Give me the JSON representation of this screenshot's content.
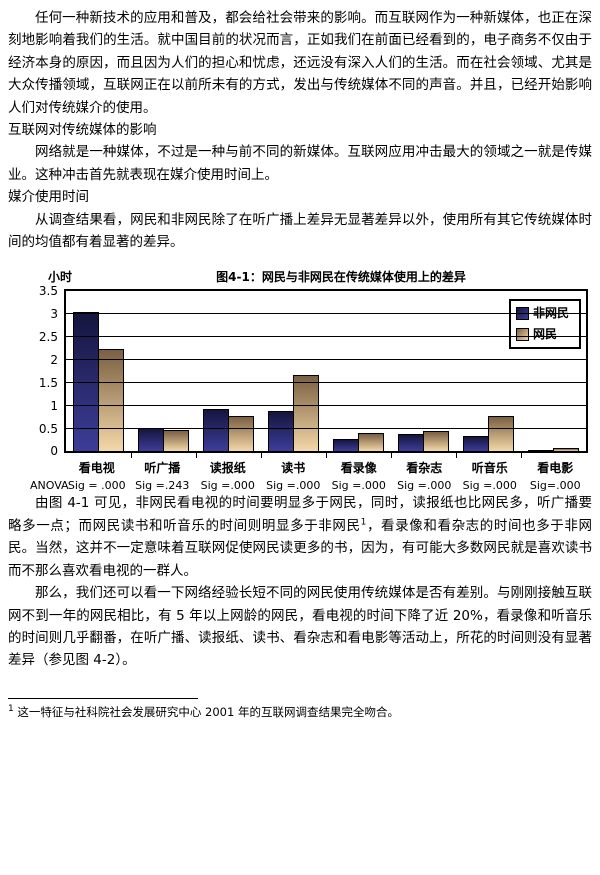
{
  "document": {
    "p1": "任何一种新技术的应用和普及，都会给社会带来的影响。而互联网作为一种新媒体，也正在深刻地影响着我们的生活。就中国目前的状况而言，正如我们在前面已经看到的，电子商务不仅由于经济本身的原因，而且因为人们的担心和忧虑，还远没有深入人们的生活。而在社会领域、尤其是大众传播领域，互联网正在以前所未有的方式，发出与传统媒体不同的声音。并且，已经开始影响人们对传统媒介的使用。",
    "heading": "互联网对传统媒体的影响",
    "p2": "网络就是一种媒体，不过是一种与前不同的新媒体。互联网应用冲击最大的领域之一就是传媒业。这种冲击首先就表现在媒介使用时间上。",
    "subtitle": "媒介使用时间",
    "p3": "从调查结果看，网民和非网民除了在听广播上差异无显著差异以外，使用所有其它传统媒体时间的均值都有着显著的差异。",
    "p4": {
      "pre": "由图 4-1 可见，非网民看电视的时间要明显多于网民，同时，读报纸也比网民多，听广播要略多一点；而网民读书和听音乐的时间则明显多于非网民",
      "sup": "1",
      "post": "，看录像和看杂志的时间也多于非网民。当然，这并不一定意味着互联网促使网民读更多的书，因为，有可能大多数网民就是喜欢读书而不那么喜欢看电视的一群人。"
    },
    "p5": "那么，我们还可以看一下网络经验长短不同的网民使用传统媒体是否有差别。与刚刚接触互联网不到一年的网民相比，有 5 年以上网龄的网民，看电视的时间下降了近 20%，看录像和听音乐的时间则几乎翻番，在听广播、读报纸、读书、看杂志和看电影等活动上，所花的时间则没有显著差异（参见图 4-2）。",
    "footnote": {
      "marker": "1",
      "text": "这一特征与社科院社会发展研究中心 2001 年的互联网调查结果完全吻合。"
    }
  },
  "chart_data": {
    "type": "bar",
    "title": "图4-1：网民与非网民在传统媒体使用上的差异",
    "ylabel": "小时",
    "ylim": [
      0,
      3.5
    ],
    "ytick_step": 0.5,
    "grid": "horizontal",
    "legend_position": "top-right",
    "categories": [
      "看电视",
      "听广播",
      "读报纸",
      "读书",
      "看录像",
      "看杂志",
      "听音乐",
      "看电影"
    ],
    "series": [
      {
        "name": "非网民",
        "color_top": "#15153f",
        "color_bottom": "#3d3d99",
        "values": [
          3.05,
          0.52,
          0.93,
          0.88,
          0.28,
          0.38,
          0.33,
          0.03
        ]
      },
      {
        "name": "网民",
        "color_top": "#7a5f42",
        "color_bottom": "#f4d8a8",
        "values": [
          2.25,
          0.48,
          0.77,
          1.68,
          0.4,
          0.45,
          0.78,
          0.08
        ]
      }
    ],
    "anova_label": "ANOVA",
    "sig_labels": [
      "Sig = .000",
      "Sig =.243",
      "Sig =.000",
      "Sig =.000",
      "Sig =.000",
      "Sig =.000",
      "Sig =.000",
      "Sig=.000"
    ]
  }
}
